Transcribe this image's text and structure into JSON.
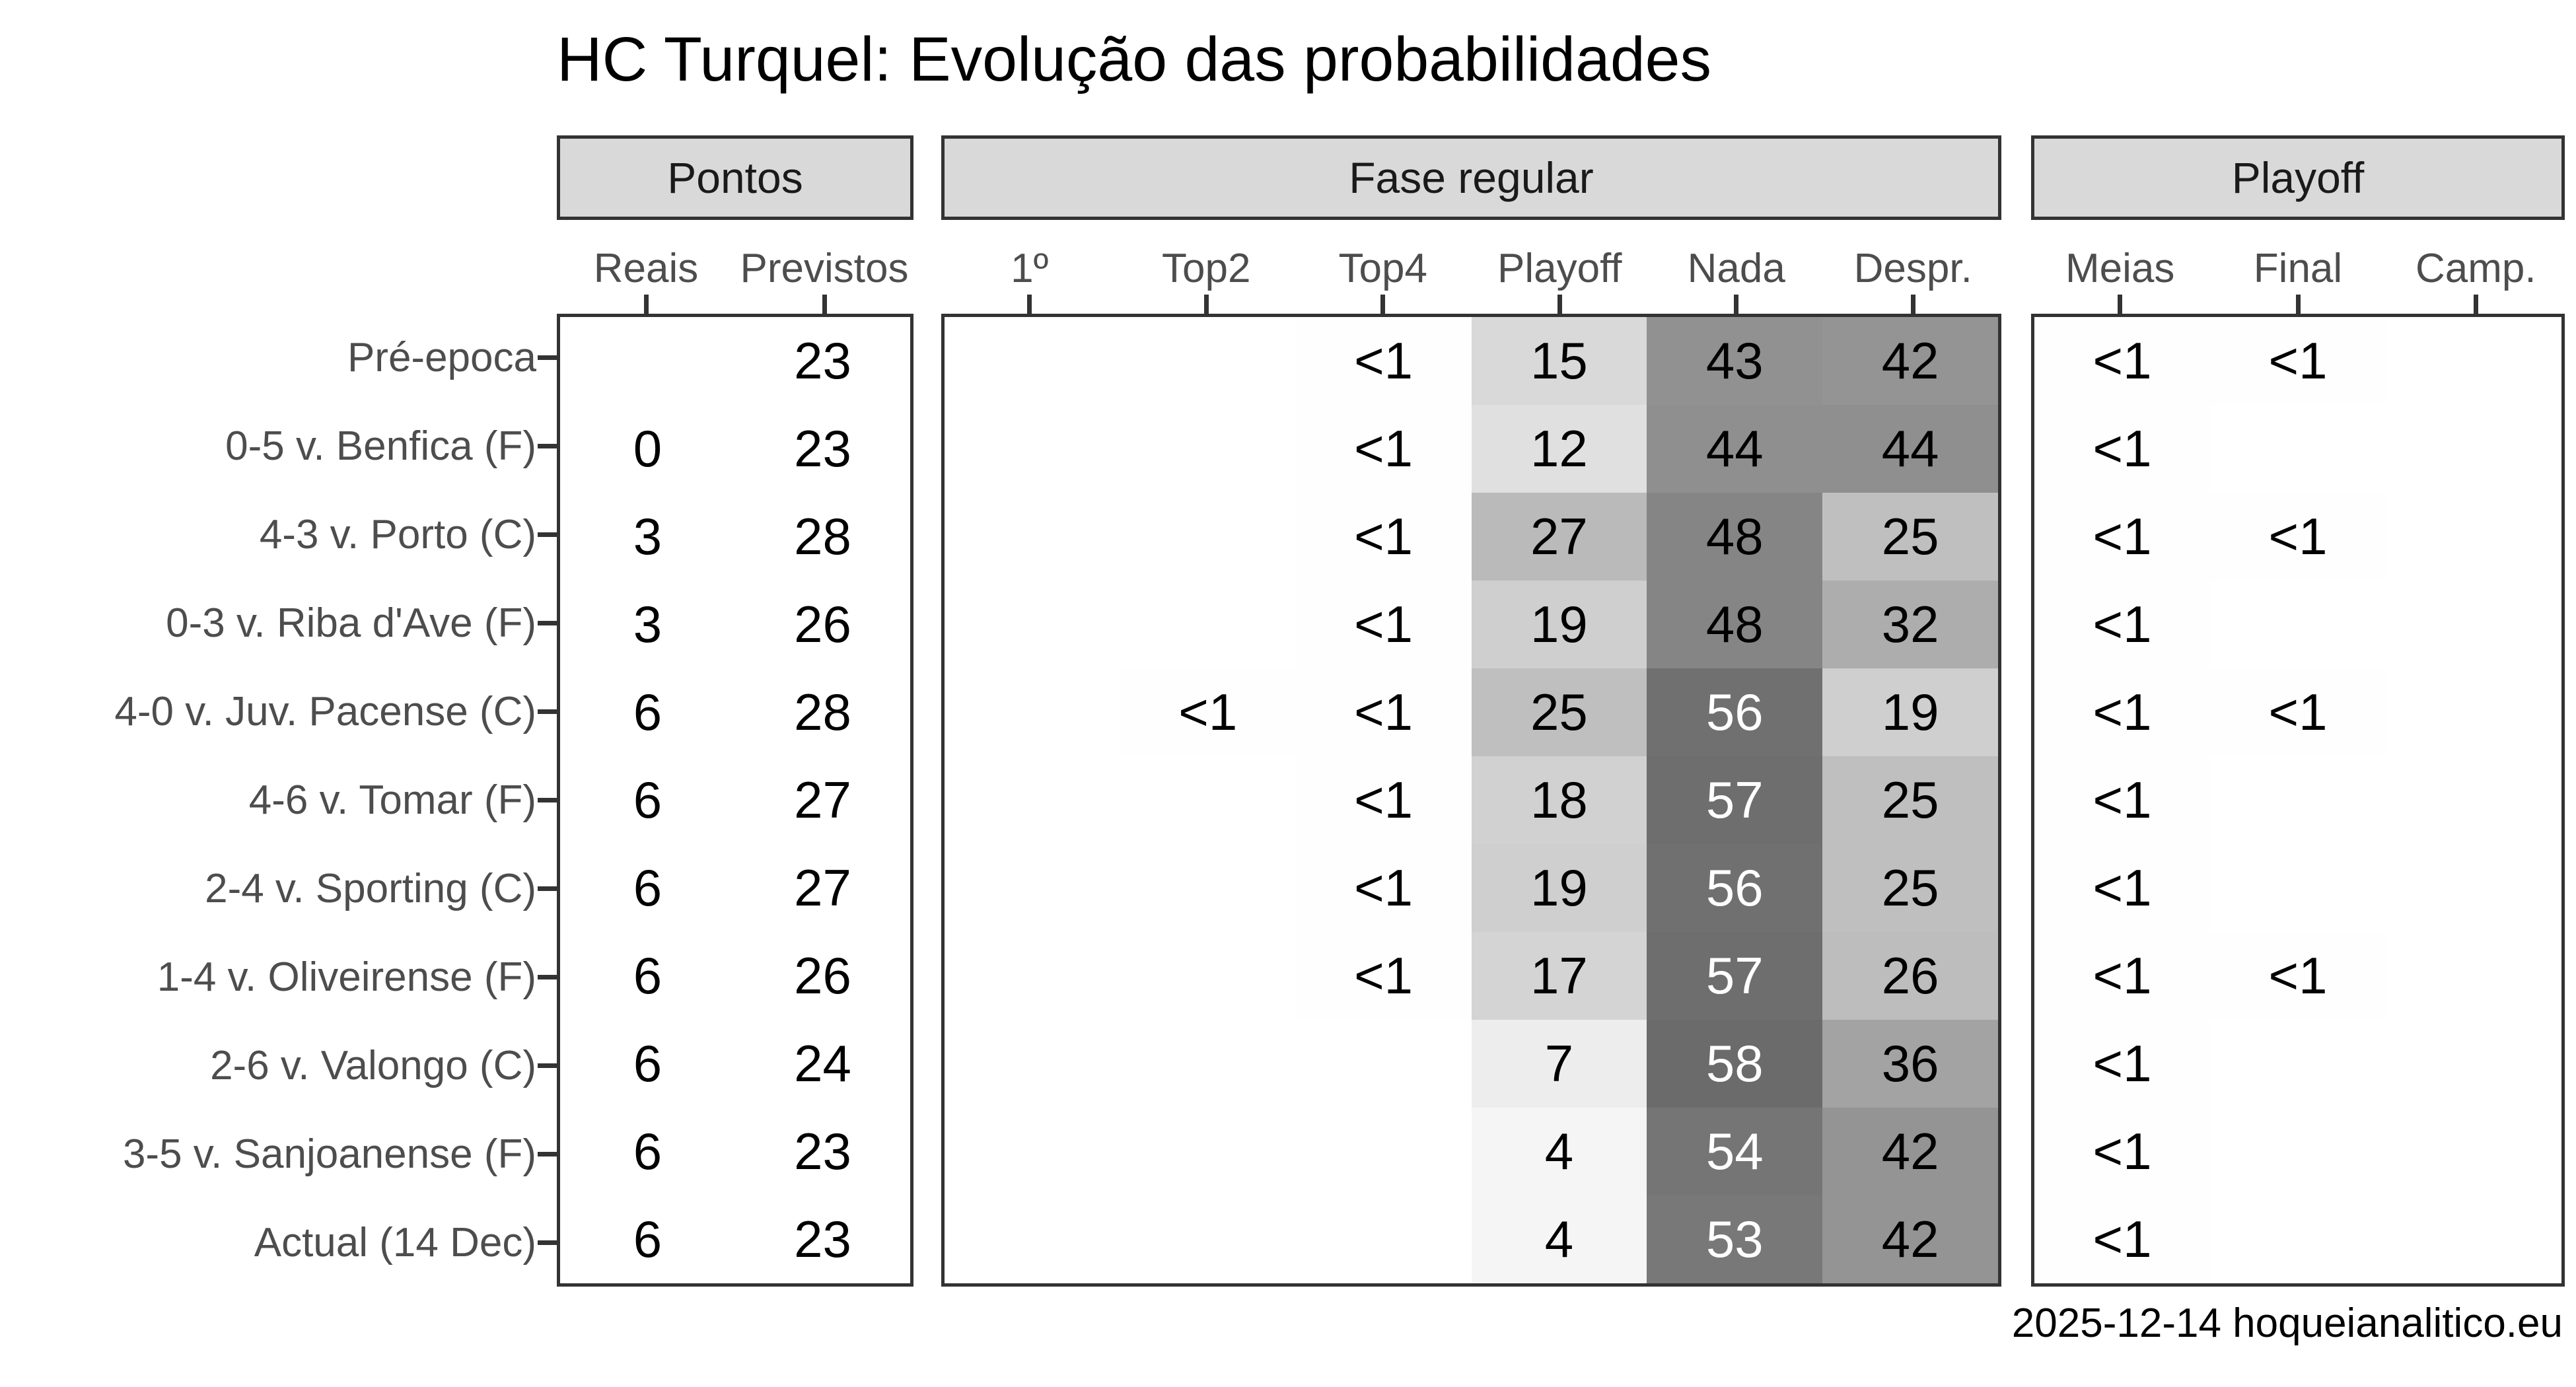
{
  "title": "HC Turquel: Evolução das probabilidades",
  "caption": "2025-12-14 hoqueianalitico.eu",
  "colors": {
    "background": "#ffffff",
    "strip_fill": "#d9d9d9",
    "border": "#333333",
    "axis_text": "#4d4d4d",
    "strip_text": "#1a1a1a",
    "cell_text_dark": "#000000",
    "cell_text_light": "#ffffff",
    "scale_low": "#ffffff",
    "scale_high": "#000000"
  },
  "panels": [
    {
      "id": "pontos",
      "strip": "Pontos",
      "columns": [
        "Reais",
        "Previstos"
      ],
      "shaded": false
    },
    {
      "id": "fase",
      "strip": "Fase regular",
      "columns": [
        "1º",
        "Top2",
        "Top4",
        "Playoff",
        "Nada",
        "Despr."
      ],
      "shaded": true
    },
    {
      "id": "playoff",
      "strip": "Playoff",
      "columns": [
        "Meias",
        "Final",
        "Camp."
      ],
      "shaded": true
    }
  ],
  "rows": [
    {
      "label": "Pré-epoca",
      "pontos": [
        "",
        "23"
      ],
      "fase": [
        "",
        "",
        "<1",
        "15",
        "43",
        "42"
      ],
      "playoff": [
        "<1",
        "<1",
        ""
      ]
    },
    {
      "label": "0-5 v. Benfica (F)",
      "pontos": [
        "0",
        "23"
      ],
      "fase": [
        "",
        "",
        "<1",
        "12",
        "44",
        "44"
      ],
      "playoff": [
        "<1",
        "",
        ""
      ]
    },
    {
      "label": "4-3 v. Porto (C)",
      "pontos": [
        "3",
        "28"
      ],
      "fase": [
        "",
        "",
        "<1",
        "27",
        "48",
        "25"
      ],
      "playoff": [
        "<1",
        "<1",
        ""
      ]
    },
    {
      "label": "0-3 v. Riba d'Ave (F)",
      "pontos": [
        "3",
        "26"
      ],
      "fase": [
        "",
        "",
        "<1",
        "19",
        "48",
        "32"
      ],
      "playoff": [
        "<1",
        "",
        ""
      ]
    },
    {
      "label": "4-0 v. Juv. Pacense (C)",
      "pontos": [
        "6",
        "28"
      ],
      "fase": [
        "",
        "<1",
        "<1",
        "25",
        "56",
        "19"
      ],
      "playoff": [
        "<1",
        "<1",
        ""
      ]
    },
    {
      "label": "4-6 v. Tomar (F)",
      "pontos": [
        "6",
        "27"
      ],
      "fase": [
        "",
        "",
        "<1",
        "18",
        "57",
        "25"
      ],
      "playoff": [
        "<1",
        "",
        ""
      ]
    },
    {
      "label": "2-4 v. Sporting (C)",
      "pontos": [
        "6",
        "27"
      ],
      "fase": [
        "",
        "",
        "<1",
        "19",
        "56",
        "25"
      ],
      "playoff": [
        "<1",
        "",
        ""
      ]
    },
    {
      "label": "1-4 v. Oliveirense (F)",
      "pontos": [
        "6",
        "26"
      ],
      "fase": [
        "",
        "",
        "<1",
        "17",
        "57",
        "26"
      ],
      "playoff": [
        "<1",
        "<1",
        ""
      ]
    },
    {
      "label": "2-6 v. Valongo (C)",
      "pontos": [
        "6",
        "24"
      ],
      "fase": [
        "",
        "",
        "",
        "7",
        "58",
        "36"
      ],
      "playoff": [
        "<1",
        "",
        ""
      ]
    },
    {
      "label": "3-5 v. Sanjoanense (F)",
      "pontos": [
        "6",
        "23"
      ],
      "fase": [
        "",
        "",
        "",
        "4",
        "54",
        "42"
      ],
      "playoff": [
        "<1",
        "",
        ""
      ]
    },
    {
      "label": "Actual (14 Dec)",
      "pontos": [
        "6",
        "23"
      ],
      "fase": [
        "",
        "",
        "",
        "4",
        "53",
        "42"
      ],
      "playoff": [
        "<1",
        "",
        ""
      ]
    }
  ],
  "chart_data": {
    "type": "heatmap",
    "title": "HC Turquel: Evolução das probabilidades",
    "caption": "2025-12-14 hoqueianalitico.eu",
    "row_labels": [
      "Pré-epoca",
      "0-5 v. Benfica (F)",
      "4-3 v. Porto (C)",
      "0-3 v. Riba d'Ave (F)",
      "4-0 v. Juv. Pacense (C)",
      "4-6 v. Tomar (F)",
      "2-4 v. Sporting (C)",
      "1-4 v. Oliveirense (F)",
      "2-6 v. Valongo (C)",
      "3-5 v. Sanjoanense (F)",
      "Actual (14 Dec)"
    ],
    "column_groups": [
      {
        "label": "Pontos",
        "columns": [
          "Reais",
          "Previstos"
        ]
      },
      {
        "label": "Fase regular",
        "columns": [
          "1º",
          "Top2",
          "Top4",
          "Playoff",
          "Nada",
          "Despr."
        ]
      },
      {
        "label": "Playoff",
        "columns": [
          "Meias",
          "Final",
          "Camp."
        ]
      }
    ],
    "columns": [
      "Reais",
      "Previstos",
      "1º",
      "Top2",
      "Top4",
      "Playoff",
      "Nada",
      "Despr.",
      "Meias",
      "Final",
      "Camp."
    ],
    "cells": [
      [
        null,
        23,
        null,
        null,
        "<1",
        15,
        43,
        42,
        "<1",
        "<1",
        null
      ],
      [
        0,
        23,
        null,
        null,
        "<1",
        12,
        44,
        44,
        "<1",
        null,
        null
      ],
      [
        3,
        28,
        null,
        null,
        "<1",
        27,
        48,
        25,
        "<1",
        "<1",
        null
      ],
      [
        3,
        26,
        null,
        null,
        "<1",
        19,
        48,
        32,
        "<1",
        null,
        null
      ],
      [
        6,
        28,
        null,
        "<1",
        "<1",
        25,
        56,
        19,
        "<1",
        "<1",
        null
      ],
      [
        6,
        27,
        null,
        null,
        "<1",
        18,
        57,
        25,
        "<1",
        null,
        null
      ],
      [
        6,
        27,
        null,
        null,
        "<1",
        19,
        56,
        25,
        "<1",
        null,
        null
      ],
      [
        6,
        26,
        null,
        null,
        "<1",
        17,
        57,
        26,
        "<1",
        "<1",
        null
      ],
      [
        6,
        24,
        null,
        null,
        null,
        7,
        58,
        36,
        "<1",
        null,
        null
      ],
      [
        6,
        23,
        null,
        null,
        null,
        4,
        54,
        42,
        "<1",
        null,
        null
      ],
      [
        6,
        23,
        null,
        null,
        null,
        4,
        53,
        42,
        "<1",
        null,
        null
      ]
    ],
    "shading": {
      "applies_to": [
        "Fase regular",
        "Playoff"
      ],
      "scale_min": 0,
      "scale_max": 100,
      "low_color": "#ffffff",
      "high_color": "#000000",
      "white_text_above": 50
    },
    "legend": "none",
    "grid": "off"
  }
}
